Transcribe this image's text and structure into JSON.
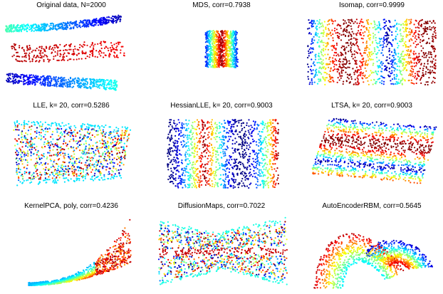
{
  "figure": {
    "colormap": "jet"
  },
  "chart_data": [
    {
      "type": "scatter",
      "id": "original",
      "title": "Original data, N=2000",
      "shape": "swiss-roll-projection",
      "n_points_total": 2000,
      "color_encoding": "manifold coordinate (jet: blue → cyan → yellow → red)"
    },
    {
      "type": "scatter",
      "id": "mds",
      "title": "MDS, corr=0.7938",
      "shape": "narrow-rectangle",
      "color_pattern": "vertical-bands",
      "corr": 0.7938
    },
    {
      "type": "scatter",
      "id": "isomap",
      "title": "Isomap, corr=0.9999",
      "shape": "rectangle",
      "color_pattern": "vertical-bands",
      "corr": 0.9999
    },
    {
      "type": "scatter",
      "id": "lle",
      "title": "LLE, k= 20, corr=0.5286",
      "shape": "trapezoid",
      "color_pattern": "mixed",
      "corr": 0.5286
    },
    {
      "type": "scatter",
      "id": "hessianlle",
      "title": "HessianLLE, k= 20, corr=0.9003",
      "shape": "rectangle",
      "color_pattern": "vertical-bands",
      "corr": 0.9003
    },
    {
      "type": "scatter",
      "id": "ltsa",
      "title": "LTSA, k= 20, corr=0.9003",
      "shape": "parallelogram",
      "color_pattern": "diagonal-bands",
      "corr": 0.9003
    },
    {
      "type": "scatter",
      "id": "kernelpca",
      "title": "KernelPCA, poly, corr=0.4236",
      "shape": "curved-wedge",
      "color_pattern": "converging",
      "corr": 0.4236
    },
    {
      "type": "scatter",
      "id": "diffusionmaps",
      "title": "DiffusionMaps, corr=0.7022",
      "shape": "bowtie",
      "color_pattern": "center-line",
      "corr": 0.7022
    },
    {
      "type": "scatter",
      "id": "autoencoderrbm",
      "title": "AutoEncoderRBM, corr=0.5645",
      "shape": "folded-sheet",
      "color_pattern": "arcs",
      "corr": 0.5645
    }
  ]
}
